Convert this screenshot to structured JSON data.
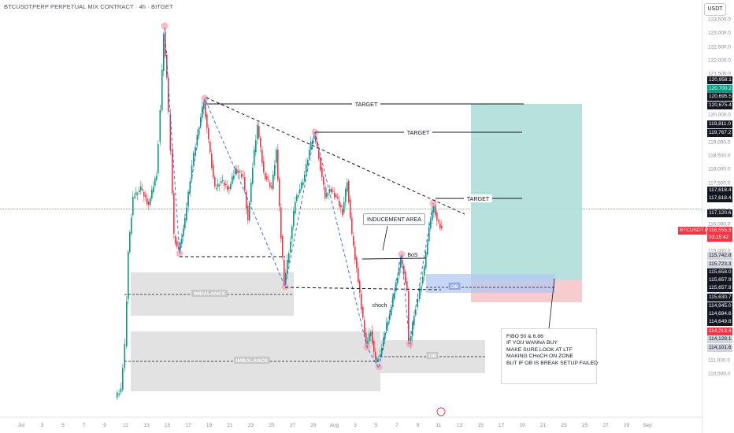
{
  "header": {
    "symbol_line": "BTCUSDTPERP PERPETUAL MIX CONTRACT · 4h · BITGET"
  },
  "currency_button": "USDT",
  "price_scale": {
    "ticks": [
      "123,500.0",
      "123,000.0",
      "122,500.0",
      "122,000.0",
      "121,500.0",
      "121,000.0",
      "120,500.0",
      "120,000.0",
      "119,500.0",
      "119,000.0",
      "118,500.0",
      "118,000.0",
      "117,500.0",
      "117,000.0",
      "116,500.0",
      "116,000.0",
      "115,500.0",
      "115,000.0",
      "114,500.0",
      "114,000.0",
      "113,500.0",
      "113,000.0",
      "112,500.0",
      "112,000.0",
      "111,500.0",
      "111,000.0",
      "110,500.0"
    ],
    "tags": [
      {
        "label": "120,958.1",
        "value": 120958.1,
        "bg": "#131722",
        "fg": "#ffffff"
      },
      {
        "label": "120,700.2",
        "value": 120700.2,
        "bg": "#089981",
        "fg": "#ffffff"
      },
      {
        "label": "120,695.5",
        "value": 120695.5,
        "bg": "#131722",
        "fg": "#ffffff"
      },
      {
        "label": "120,675.4",
        "value": 120675.4,
        "bg": "#131722",
        "fg": "#ffffff"
      },
      {
        "label": "119,811.0",
        "value": 119811.0,
        "bg": "#131722",
        "fg": "#ffffff"
      },
      {
        "label": "119,767.2",
        "value": 119767.2,
        "bg": "#131722",
        "fg": "#ffffff"
      },
      {
        "label": "117,618.4",
        "value": 117618.4,
        "bg": "#131722",
        "fg": "#ffffff"
      },
      {
        "label": "117,618.4",
        "value": 117618.4,
        "bg": "#131722",
        "fg": "#ffffff"
      },
      {
        "label": "117,120.6",
        "value": 117120.6,
        "bg": "#131722",
        "fg": "#ffffff"
      },
      {
        "label": "116,555.3",
        "value": 116555.3,
        "bg": "#f23645",
        "fg": "#ffffff"
      },
      {
        "label": "03:15:42",
        "value": 116555.3,
        "bg": "#f23645",
        "fg": "#ffffff"
      },
      {
        "label": "115,742.8",
        "value": 115742.8,
        "bg": "#d1d4dc",
        "fg": "#131722"
      },
      {
        "label": "115,723.3",
        "value": 115723.3,
        "bg": "#d1d4dc",
        "fg": "#131722"
      },
      {
        "label": "115,658.0",
        "value": 115658.0,
        "bg": "#131722",
        "fg": "#ffffff"
      },
      {
        "label": "115,657.9",
        "value": 115657.9,
        "bg": "#131722",
        "fg": "#ffffff"
      },
      {
        "label": "115,657.9",
        "value": 115657.9,
        "bg": "#131722",
        "fg": "#ffffff"
      },
      {
        "label": "115,630.7",
        "value": 115630.7,
        "bg": "#131722",
        "fg": "#ffffff"
      },
      {
        "label": "114,945.0",
        "value": 114945.0,
        "bg": "#131722",
        "fg": "#ffffff"
      },
      {
        "label": "114,694.6",
        "value": 114694.6,
        "bg": "#131722",
        "fg": "#ffffff"
      },
      {
        "label": "114,649.8",
        "value": 114649.8,
        "bg": "#131722",
        "fg": "#ffffff"
      },
      {
        "label": "114,213.4",
        "value": 114213.4,
        "bg": "#f23645",
        "fg": "#ffffff"
      },
      {
        "label": "114,128.1",
        "value": 114128.1,
        "bg": "#d1d4dc",
        "fg": "#131722"
      },
      {
        "label": "114,101.6",
        "value": 114101.6,
        "bg": "#d1d4dc",
        "fg": "#131722"
      }
    ],
    "symbol_tag": "BTCUSDT.P"
  },
  "time_axis": {
    "labels": [
      "Jul",
      "3",
      "5",
      "7",
      "9",
      "11",
      "13",
      "15",
      "17",
      "19",
      "21",
      "23",
      "25",
      "27",
      "29",
      "Aug",
      "3",
      "5",
      "7",
      "9",
      "11",
      "13",
      "15",
      "17",
      "19",
      "21",
      "23",
      "25",
      "27",
      "29",
      "Sep"
    ]
  },
  "annotations": {
    "target_1": "TARGET",
    "target_2": "TARGET",
    "target_3": "TARGET",
    "inducement": "INDUCEMENT AREA",
    "bos": "BoS",
    "choch": "choch",
    "imbalance_1": "IMBALANCE",
    "imbalance_2": "IMBALANCE",
    "ob_1": "OB",
    "ob_2": "OB"
  },
  "note": {
    "lines": [
      "FIBO 50 & 6.86",
      "",
      "IF YOU WANNA BUY",
      "MAKE SURE LOOK AT LTF",
      "MAKING CHoCH ON ZONE",
      "",
      "BUT IF OB IS BREAK SETUP FAILED"
    ]
  },
  "colors": {
    "up": "#089981",
    "down": "#f23645",
    "target_zone": "#b2dfdb",
    "stop_zone": "#f7c9cc",
    "ob_zone": "#b3c8f0",
    "imbalance": "#d6d6d6"
  },
  "chart_data": {
    "type": "candlestick",
    "symbol": "BTCUSDTPERP",
    "timeframe": "4h",
    "last_price": 116555.3,
    "countdown": "03:15:42",
    "ylim": [
      110500,
      123500
    ],
    "x_range": [
      "Jul",
      "Sep"
    ],
    "swing_points": [
      {
        "x": "Jul 10",
        "y": 110600
      },
      {
        "x": "Jul 14",
        "y": 123300
      },
      {
        "x": "Jul 15",
        "y": 116000
      },
      {
        "x": "Jul 17",
        "y": 120000
      },
      {
        "x": "Jul 19",
        "y": 118200
      },
      {
        "x": "Jul 23",
        "y": 119700
      },
      {
        "x": "Jul 25",
        "y": 115000
      },
      {
        "x": "Jul 28",
        "y": 119750
      },
      {
        "x": "Aug 1",
        "y": 113600
      },
      {
        "x": "Aug 3",
        "y": 112100
      },
      {
        "x": "Aug 5",
        "y": 115800
      },
      {
        "x": "Aug 6",
        "y": 113600
      },
      {
        "x": "Aug 8",
        "y": 117600
      },
      {
        "x": "Aug 9",
        "y": 116555
      }
    ],
    "levels": [
      {
        "name": "TARGET",
        "value": 120000
      },
      {
        "name": "TARGET",
        "value": 119400
      },
      {
        "name": "TARGET",
        "value": 117600
      }
    ]
  }
}
